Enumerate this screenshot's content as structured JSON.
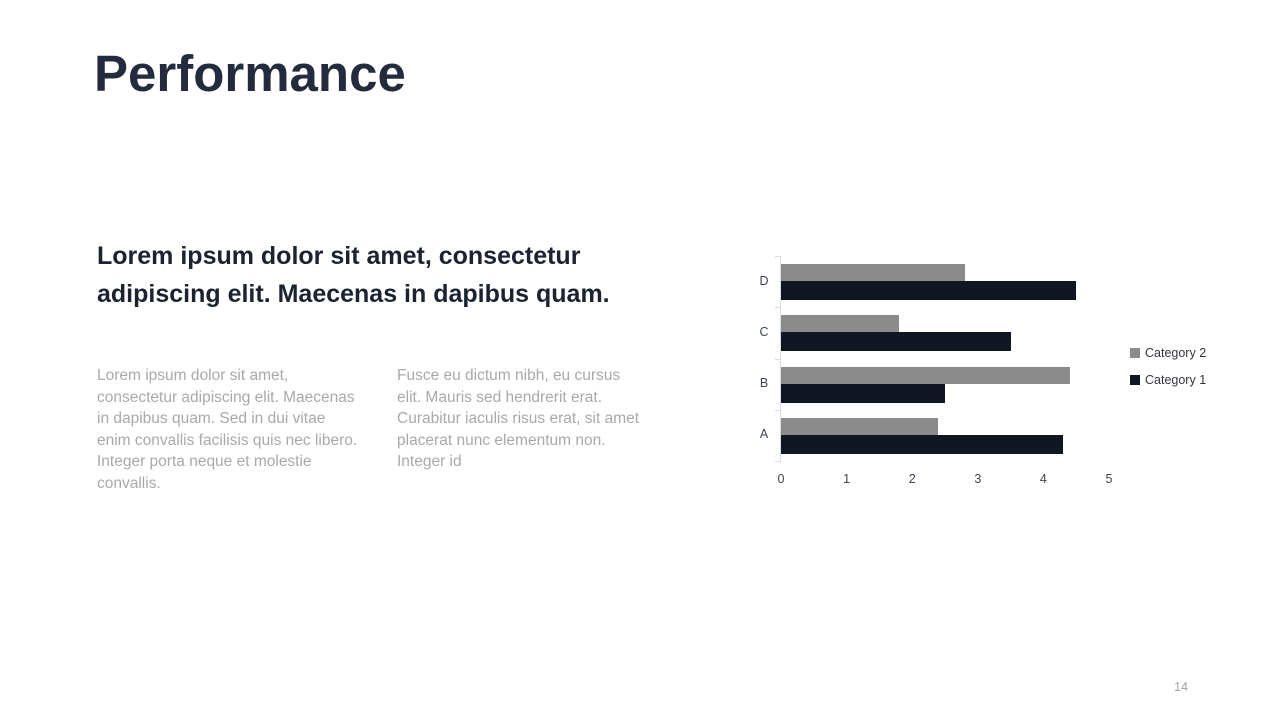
{
  "slide": {
    "title": "Performance",
    "subtitle": "Lorem ipsum dolor sit amet, consectetur adipiscing elit. Maecenas in dapibus quam.",
    "body_columns": [
      "Lorem ipsum dolor sit amet, consectetur adipiscing elit. Maecenas in dapibus quam. Sed in dui vitae enim convallis facilisis quis nec libero. Integer porta neque et molestie convallis.",
      "Fusce eu dictum nibh, eu cursus elit. Mauris sed hendrerit erat. Curabitur iaculis risus erat, sit amet placerat nunc elementum non. Integer id"
    ],
    "page_number": "14"
  },
  "chart_data": {
    "type": "bar",
    "orientation": "horizontal",
    "title": "",
    "xlabel": "",
    "ylabel": "",
    "categories": [
      "A",
      "B",
      "C",
      "D"
    ],
    "category_order_top_to_bottom": [
      "D",
      "C",
      "B",
      "A"
    ],
    "series": [
      {
        "name": "Category 1",
        "color": "#111722",
        "values": [
          4.3,
          2.5,
          3.5,
          4.5
        ]
      },
      {
        "name": "Category 2",
        "color": "#8b8b8b",
        "values": [
          2.4,
          4.4,
          1.8,
          2.8
        ]
      }
    ],
    "legend_order_top_to_bottom": [
      "Category 2",
      "Category 1"
    ],
    "legend_position": "right",
    "xlim": [
      0,
      5
    ],
    "xticks": [
      "0",
      "1",
      "2",
      "3",
      "4",
      "5"
    ],
    "grid": false
  },
  "colors": {
    "background": "#ffffff",
    "title_text": "#242b3e",
    "subtitle_text": "#1b2230",
    "body_text": "#a9a9a9",
    "axis_line": "#d9dce3",
    "axis_label_text": "#3e4350",
    "series1": "#111722",
    "series2": "#8b8b8b",
    "page_number_text": "#a2a2a2"
  }
}
